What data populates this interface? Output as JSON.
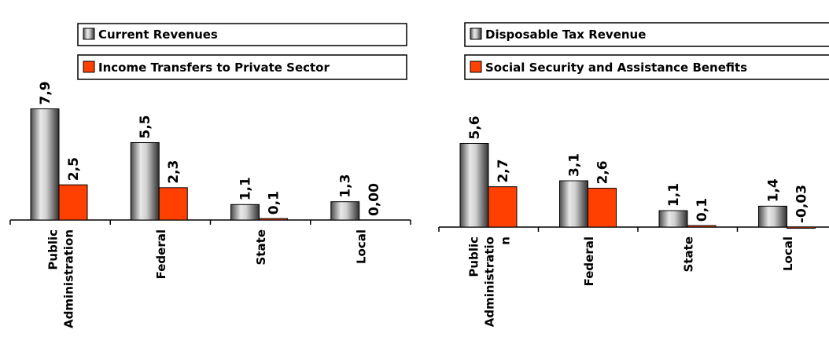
{
  "colors": {
    "series_gray_light": "#e6e6e6",
    "series_gray_dark": "#3a3a3a",
    "series_orange": "#ff4000",
    "series_orange_light": "#ff7a30",
    "axis": "#000000"
  },
  "chart_data": [
    {
      "type": "bar",
      "title": "",
      "xlabel": "",
      "ylabel": "",
      "categories": [
        "Public Administration",
        "Federal",
        "State",
        "Local"
      ],
      "category_labels": [
        [
          "Public",
          "Administration"
        ],
        [
          "Federal"
        ],
        [
          "State"
        ],
        [
          "Local"
        ]
      ],
      "series": [
        {
          "name": "Current Revenues",
          "values": [
            7.9,
            5.5,
            1.1,
            1.3
          ],
          "labels": [
            "7,9",
            "5,5",
            "1,1",
            "1,3"
          ]
        },
        {
          "name": "Income Transfers to Private Sector",
          "values": [
            2.5,
            2.3,
            0.1,
            0.0
          ],
          "labels": [
            "2,5",
            "2,3",
            "0,1",
            "0,00"
          ]
        }
      ],
      "legend_position": "top",
      "grid": false
    },
    {
      "type": "bar",
      "title": "",
      "xlabel": "",
      "ylabel": "",
      "categories": [
        "Public Administration",
        "Federal",
        "State",
        "Local"
      ],
      "category_labels": [
        [
          "Public",
          "Administratio",
          "n"
        ],
        [
          "Federal"
        ],
        [
          "State"
        ],
        [
          "Local"
        ]
      ],
      "series": [
        {
          "name": "Disposable Tax Revenue",
          "values": [
            5.6,
            3.1,
            1.1,
            1.4
          ],
          "labels": [
            "5,6",
            "3,1",
            "1,1",
            "1,4"
          ]
        },
        {
          "name": "Social Security and Assistance Benefits",
          "values": [
            2.7,
            2.6,
            0.1,
            -0.03
          ],
          "labels": [
            "2,7",
            "2,6",
            "0,1",
            "-0,03"
          ]
        }
      ],
      "legend_position": "top",
      "grid": false
    }
  ]
}
